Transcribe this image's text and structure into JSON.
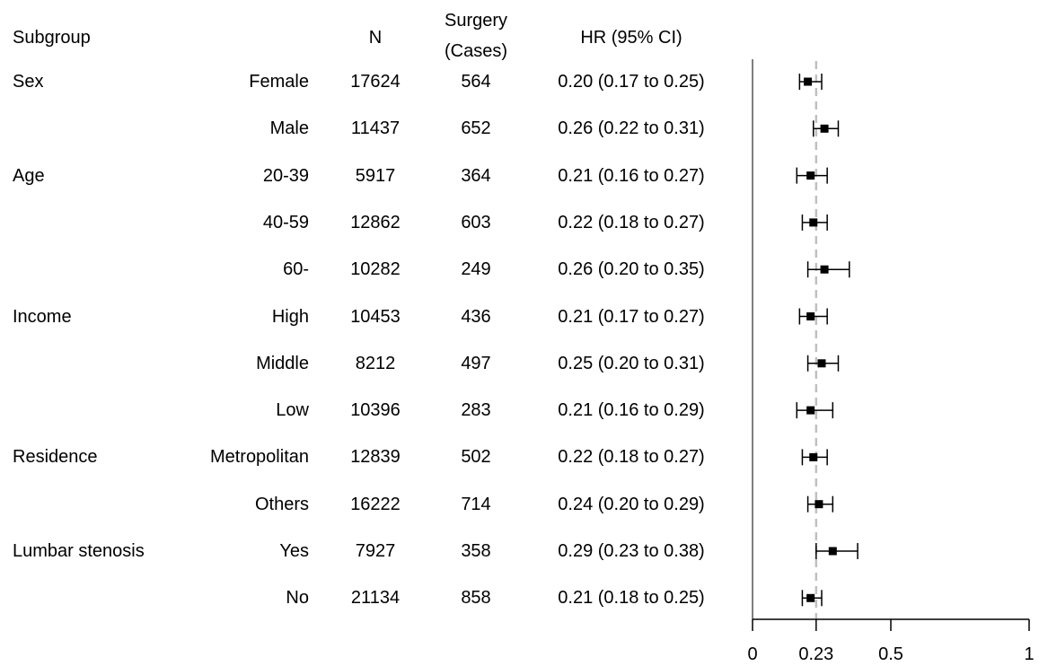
{
  "headers": {
    "subgroup": "Subgroup",
    "n": "N",
    "surgery_line1": "Surgery",
    "surgery_line2": "(Cases)",
    "hr": "HR (95% CI)"
  },
  "rows": [
    {
      "group": "Sex",
      "level": "Female",
      "n": "17624",
      "cases": "564",
      "hr_text": "0.20 (0.17 to 0.25)"
    },
    {
      "group": "",
      "level": "Male",
      "n": "11437",
      "cases": "652",
      "hr_text": "0.26 (0.22 to 0.31)"
    },
    {
      "group": "Age",
      "level": "20-39",
      "n": "5917",
      "cases": "364",
      "hr_text": "0.21 (0.16 to 0.27)"
    },
    {
      "group": "",
      "level": "40-59",
      "n": "12862",
      "cases": "603",
      "hr_text": "0.22 (0.18 to 0.27)"
    },
    {
      "group": "",
      "level": "60-",
      "n": "10282",
      "cases": "249",
      "hr_text": "0.26 (0.20 to 0.35)"
    },
    {
      "group": "Income",
      "level": "High",
      "n": "10453",
      "cases": "436",
      "hr_text": "0.21 (0.17 to 0.27)"
    },
    {
      "group": "",
      "level": "Middle",
      "n": "8212",
      "cases": "497",
      "hr_text": "0.25 (0.20 to 0.31)"
    },
    {
      "group": "",
      "level": "Low",
      "n": "10396",
      "cases": "283",
      "hr_text": "0.21 (0.16 to 0.29)"
    },
    {
      "group": "Residence",
      "level": "Metropolitan",
      "n": "12839",
      "cases": "502",
      "hr_text": "0.22 (0.18 to 0.27)"
    },
    {
      "group": "",
      "level": "Others",
      "n": "16222",
      "cases": "714",
      "hr_text": "0.24 (0.20 to 0.29)"
    },
    {
      "group": "Lumbar stenosis",
      "level": "Yes",
      "n": "7927",
      "cases": "358",
      "hr_text": "0.29 (0.23 to 0.38)"
    },
    {
      "group": "",
      "level": "No",
      "n": "21134",
      "cases": "858",
      "hr_text": "0.21 (0.18 to 0.25)"
    }
  ],
  "chart_data": {
    "type": "forest",
    "xlim": [
      0,
      1
    ],
    "xticks": [
      0,
      0.23,
      0.5,
      1
    ],
    "xtick_labels": [
      "0",
      "0.23",
      "0.5",
      "1"
    ],
    "reference_line": 0.23,
    "reference_line_style": "dashed",
    "reference_line_color": "#c0c0c0",
    "grid": false,
    "points": [
      {
        "label": "Female",
        "hr": 0.2,
        "lo": 0.17,
        "hi": 0.25
      },
      {
        "label": "Male",
        "hr": 0.26,
        "lo": 0.22,
        "hi": 0.31
      },
      {
        "label": "20-39",
        "hr": 0.21,
        "lo": 0.16,
        "hi": 0.27
      },
      {
        "label": "40-59",
        "hr": 0.22,
        "lo": 0.18,
        "hi": 0.27
      },
      {
        "label": "60-",
        "hr": 0.26,
        "lo": 0.2,
        "hi": 0.35
      },
      {
        "label": "High",
        "hr": 0.21,
        "lo": 0.17,
        "hi": 0.27
      },
      {
        "label": "Middle",
        "hr": 0.25,
        "lo": 0.2,
        "hi": 0.31
      },
      {
        "label": "Low",
        "hr": 0.21,
        "lo": 0.16,
        "hi": 0.29
      },
      {
        "label": "Metropolitan",
        "hr": 0.22,
        "lo": 0.18,
        "hi": 0.27
      },
      {
        "label": "Others",
        "hr": 0.24,
        "lo": 0.2,
        "hi": 0.29
      },
      {
        "label": "Yes",
        "hr": 0.29,
        "lo": 0.23,
        "hi": 0.38
      },
      {
        "label": "No",
        "hr": 0.21,
        "lo": 0.18,
        "hi": 0.25
      }
    ]
  }
}
